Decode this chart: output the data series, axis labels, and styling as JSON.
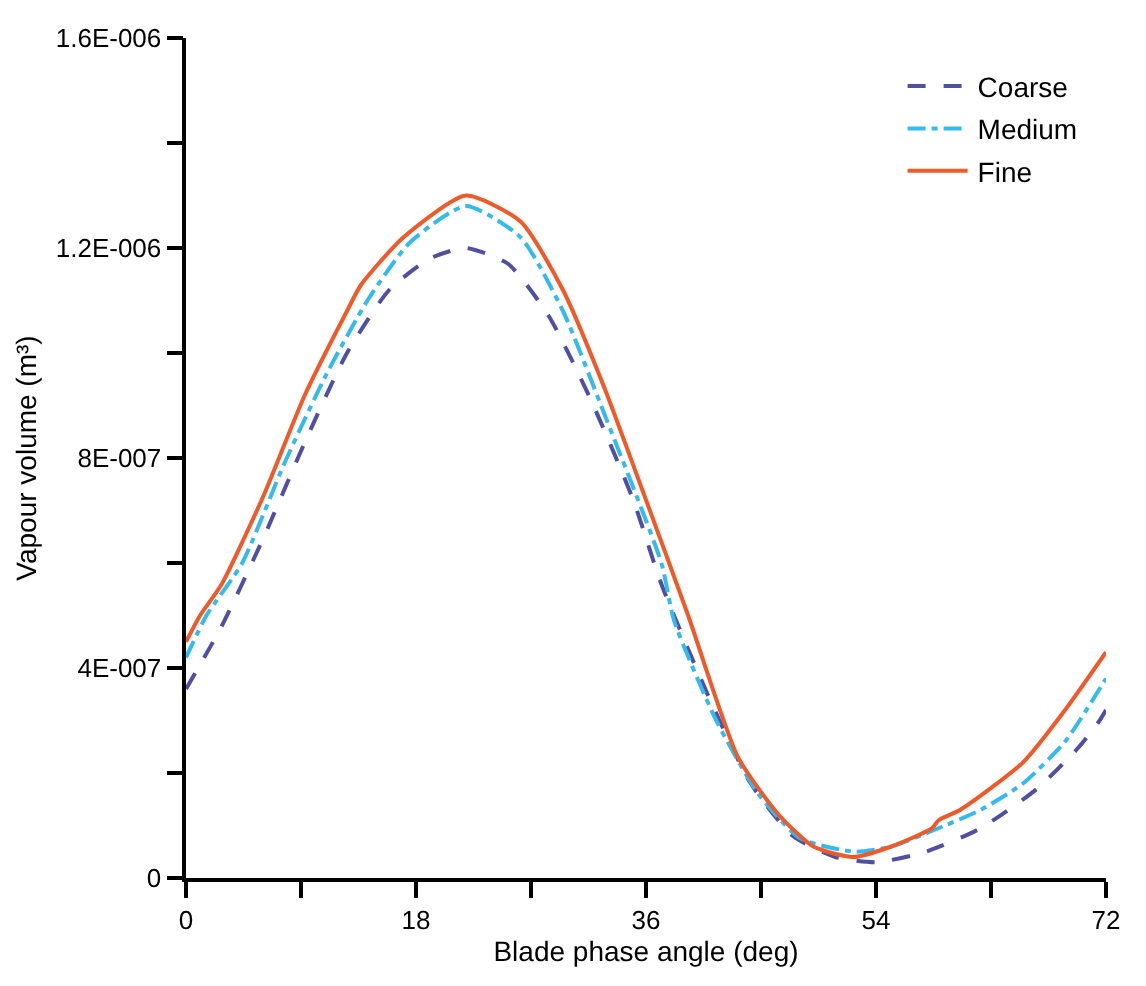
{
  "chart_data": {
    "type": "line",
    "xlabel": "Blade phase angle (deg)",
    "ylabel": "Vapour volume (m³)",
    "xlim": [
      0,
      72
    ],
    "ylim": [
      0,
      1.6e-06
    ],
    "xticks": [
      0,
      {
        "value": 9,
        "label": null
      },
      18,
      {
        "value": 27,
        "label": null
      },
      36,
      {
        "value": 45,
        "label": null
      },
      54,
      {
        "value": 63,
        "label": null
      },
      72
    ],
    "yticks": [
      {
        "value": 0,
        "label": "0"
      },
      {
        "value": 2e-07,
        "label": null
      },
      {
        "value": 4e-07,
        "label": "4E-007"
      },
      {
        "value": 6e-07,
        "label": null
      },
      {
        "value": 8e-07,
        "label": "8E-007"
      },
      {
        "value": 1e-06,
        "label": null
      },
      {
        "value": 1.2e-06,
        "label": "1.2E-006"
      },
      {
        "value": 1.4e-06,
        "label": null
      },
      {
        "value": 1.6e-06,
        "label": "1.6E-006"
      }
    ],
    "legend": "top right",
    "marker": "none",
    "series": [
      {
        "name": "Coarse",
        "color": "#4f4fa3",
        "line_style": "dashed",
        "x": [
          0,
          2.8,
          6.1,
          9.3,
          12.6,
          15.9,
          19.1,
          21.9,
          25.2,
          28.4,
          31.7,
          35,
          37.2,
          41,
          44.2,
          47.5,
          50.8,
          54,
          57.9,
          62.2,
          66.6,
          69.9,
          71.5,
          72
        ],
        "values": [
          3.6e-07,
          4.8e-07,
          6.5e-07,
          8.3e-07,
          1e-06,
          1.12e-06,
          1.18e-06,
          1.2e-06,
          1.17e-06,
          1.07e-06,
          9.1e-07,
          7.2e-07,
          5.6e-07,
          3.4e-07,
          1.8e-07,
          8e-08,
          4e-08,
          3e-08,
          5e-08,
          9.5e-08,
          1.7e-07,
          2.5e-07,
          3e-07,
          3.2e-07
        ]
      },
      {
        "name": "Medium",
        "color": "#33bbee",
        "line_style": "dashdot",
        "x": [
          0,
          1.6,
          4.4,
          7.7,
          11,
          14.2,
          17.5,
          21.9,
          26.2,
          29.5,
          32.8,
          37.2,
          38.2,
          41.5,
          44.8,
          48.1,
          52.4,
          55.2,
          58.4,
          62.2,
          65.5,
          68.8,
          72
        ],
        "values": [
          4.2e-07,
          5e-07,
          6e-07,
          7.9e-07,
          9.6e-07,
          1.1e-06,
          1.21e-06,
          1.28e-06,
          1.22e-06,
          1.08e-06,
          8.8e-07,
          6e-07,
          4.9e-07,
          3e-07,
          1.6e-07,
          7.5e-08,
          5e-08,
          6e-08,
          9e-08,
          1.3e-07,
          1.8e-07,
          2.6e-07,
          3.8e-07
        ]
      },
      {
        "name": "Fine",
        "color": "#f05a28",
        "line_style": "solid",
        "x": [
          0,
          1.1,
          2.8,
          6.1,
          9.3,
          12.6,
          13.7,
          17,
          21.9,
          26.2,
          29.5,
          32.8,
          36,
          39.3,
          43.2,
          46.4,
          49.1,
          52.2,
          55.2,
          58.4,
          58.9,
          60.6,
          65.5,
          68.8,
          72
        ],
        "values": [
          4.5e-07,
          5e-07,
          5.6e-07,
          7.3e-07,
          9.2e-07,
          1.08e-06,
          1.13e-06,
          1.22e-06,
          1.3e-06,
          1.25e-06,
          1.12e-06,
          9.3e-07,
          7.2e-07,
          5e-07,
          2.3e-07,
          1.2e-07,
          6e-08,
          4e-08,
          6e-08,
          9.5e-08,
          1.1e-07,
          1.3e-07,
          2.2e-07,
          3.2e-07,
          4.3e-07
        ]
      }
    ]
  }
}
